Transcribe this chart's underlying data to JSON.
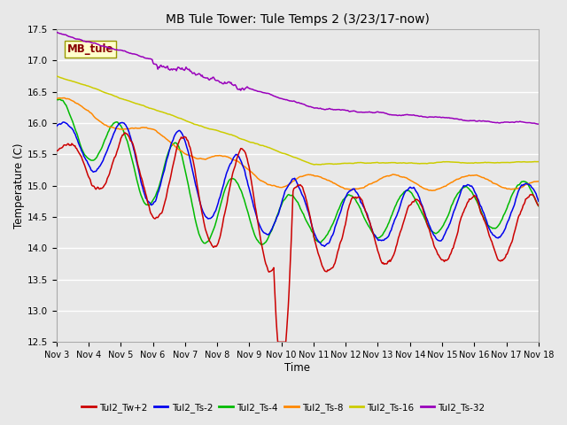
{
  "title": "MB Tule Tower: Tule Temps 2 (3/23/17-now)",
  "xlabel": "Time",
  "ylabel": "Temperature (C)",
  "ylim": [
    12.5,
    17.5
  ],
  "xlim": [
    0,
    15
  ],
  "plot_bg_color": "#e8e8e8",
  "grid_color": "#ffffff",
  "series_colors": {
    "Tul2_Tw+2": "#cc0000",
    "Tul2_Ts-2": "#0000ee",
    "Tul2_Ts-4": "#00bb00",
    "Tul2_Ts-8": "#ff8800",
    "Tul2_Ts-16": "#cccc00",
    "Tul2_Ts-32": "#9900bb"
  },
  "x_tick_labels": [
    "Nov 3",
    "Nov 4",
    "Nov 5",
    "Nov 6",
    "Nov 7",
    "Nov 8",
    "Nov 9",
    "Nov 10",
    "Nov 11",
    "Nov 12",
    "Nov 13",
    "Nov 14",
    "Nov 15",
    "Nov 16",
    "Nov 17",
    "Nov 18"
  ],
  "inset_label": "MB_tule",
  "legend_entries": [
    "Tul2_Tw+2",
    "Tul2_Ts-2",
    "Tul2_Ts-4",
    "Tul2_Ts-8",
    "Tul2_Ts-16",
    "Tul2_Ts-32"
  ],
  "fig_width": 6.4,
  "fig_height": 4.8,
  "dpi": 100
}
